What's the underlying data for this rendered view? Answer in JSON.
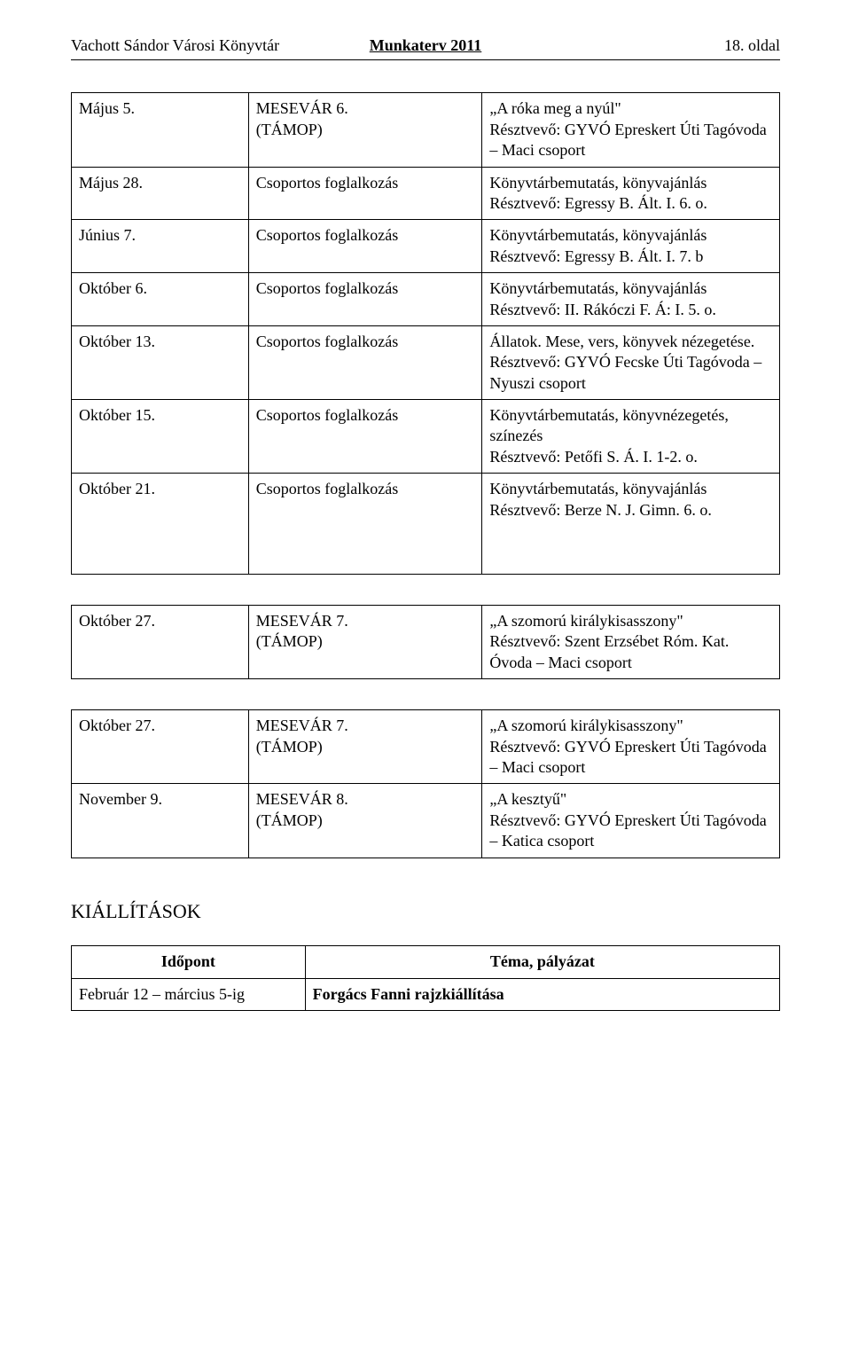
{
  "header": {
    "left": "Vachott Sándor Városi Könyvtár",
    "center": "Munkaterv 2011",
    "right": "18. oldal"
  },
  "main_table": {
    "rows": [
      {
        "date": "Május 5.",
        "event": "MESEVÁR 6.\n(TÁMOP)",
        "desc": "„A róka meg a nyúl\"\nRésztvevő: GYVÓ Epreskert Úti Tagóvoda – Maci csoport"
      },
      {
        "date": "Május 28.",
        "event": "Csoportos foglalkozás",
        "desc": "Könyvtárbemutatás, könyvajánlás\nRésztvevő: Egressy B. Ált. I. 6. o."
      },
      {
        "date": "Június 7.",
        "event": "Csoportos foglalkozás",
        "desc": "Könyvtárbemutatás, könyvajánlás\nRésztvevő: Egressy B. Ált. I. 7. b"
      },
      {
        "date": "Október 6.",
        "event": "Csoportos foglalkozás",
        "desc": "Könyvtárbemutatás, könyvajánlás\nRésztvevő: II. Rákóczi F. Á: I. 5. o."
      },
      {
        "date": "Október 13.",
        "event": "Csoportos foglalkozás",
        "desc": "Állatok. Mese, vers, könyvek nézegetése.\nRésztvevő: GYVÓ Fecske Úti Tagóvoda – Nyuszi csoport"
      },
      {
        "date": "Október 15.",
        "event": "Csoportos foglalkozás",
        "desc": "Könyvtárbemutatás, könyvnézegetés, színezés\nRésztvevő: Petőfi S. Á. I. 1-2. o."
      },
      {
        "date": "Október 21.",
        "event": "Csoportos foglalkozás",
        "desc": "Könyvtárbemutatás, könyvajánlás\nRésztvevő: Berze N. J. Gimn. 6. o.",
        "tall": true
      }
    ]
  },
  "second_table": {
    "rows": [
      {
        "date": "Október 27.",
        "event": "MESEVÁR 7.\n(TÁMOP)",
        "desc": "„A szomorú királykisasszony\"\nRésztvevő: Szent Erzsébet Róm. Kat. Óvoda – Maci csoport"
      }
    ]
  },
  "third_table": {
    "rows": [
      {
        "date": "Október 27.",
        "event": "MESEVÁR 7.\n(TÁMOP)",
        "desc": "„A szomorú királykisasszony\"\nRésztvevő: GYVÓ Epreskert Úti Tagóvoda – Maci csoport"
      },
      {
        "date": "November 9.",
        "event": "MESEVÁR 8.\n(TÁMOP)",
        "desc": "„A kesztyű\"\nRésztvevő: GYVÓ Epreskert Úti Tagóvoda – Katica csoport"
      }
    ]
  },
  "section": {
    "title": "KIÁLLÍTÁSOK"
  },
  "kiallitasok_table": {
    "headers": {
      "col1": "Időpont",
      "col2": "Téma, pályázat"
    },
    "rows": [
      {
        "date": "Február 12 – március 5-ig",
        "topic": "Forgács Fanni rajzkiállítása"
      }
    ]
  }
}
